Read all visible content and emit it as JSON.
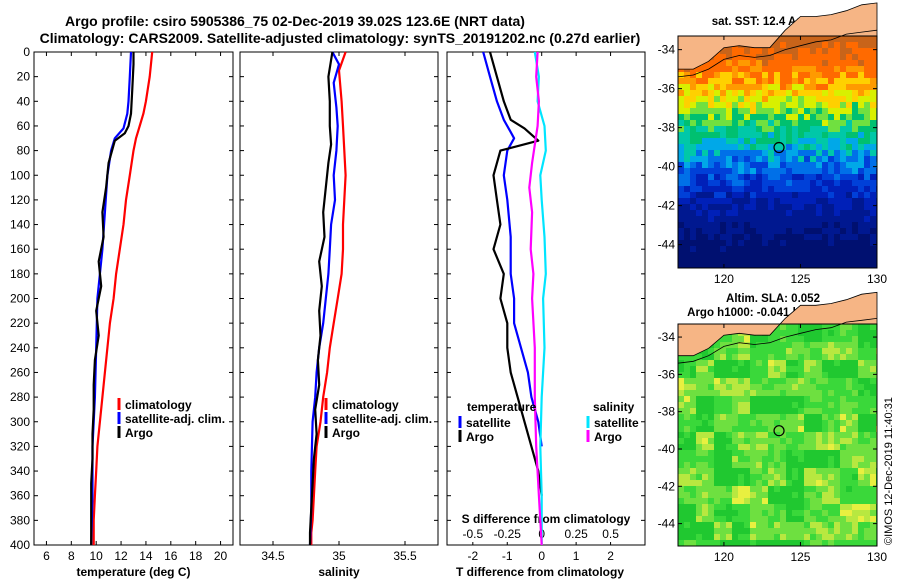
{
  "header": {
    "title_line1": "Argo profile: csiro 5905386_75 02-Dec-2019 39.02S 123.6E (NRT data)",
    "title_line2": "Climatology: CARS2009. Satellite-adjusted climatology: synTS_20191202.nc (0.27d earlier)"
  },
  "colors": {
    "climatology": "#ff0000",
    "satellite": "#0000ff",
    "argo": "#000000",
    "satellite_s": "#00e5ff",
    "argo_s": "#ff00ff",
    "land": "#f6b585"
  },
  "chart_data": [
    {
      "id": "temperature",
      "type": "line",
      "xlabel": "temperature (deg C)",
      "ylabel": "depth",
      "xlim": [
        5,
        21
      ],
      "ylim": [
        400,
        0
      ],
      "xticks": [
        "6",
        "8",
        "10",
        "12",
        "14",
        "16",
        "18",
        "20"
      ],
      "xtick_values": [
        6,
        8,
        10,
        12,
        14,
        16,
        18,
        20
      ],
      "yticks": [
        "0",
        "20",
        "40",
        "60",
        "80",
        "100",
        "120",
        "140",
        "160",
        "180",
        "200",
        "220",
        "240",
        "260",
        "280",
        "300",
        "320",
        "340",
        "360",
        "380",
        "400"
      ],
      "ytick_values": [
        0,
        20,
        40,
        60,
        80,
        100,
        120,
        140,
        160,
        180,
        200,
        220,
        240,
        260,
        280,
        300,
        320,
        340,
        360,
        380,
        400
      ],
      "legend": [
        "climatology",
        "satellite-adj. clim.",
        "Argo"
      ],
      "series": [
        {
          "name": "climatology",
          "x": [
            14.5,
            14.3,
            14.0,
            13.8,
            13.5,
            13.2,
            13.0,
            12.7,
            12.4,
            12.2,
            11.9,
            11.6,
            11.4,
            11.1,
            10.9,
            10.7,
            10.5,
            10.3,
            10.1,
            10.0,
            9.9,
            9.8,
            9.8
          ],
          "y": [
            0,
            20,
            40,
            50,
            60,
            70,
            80,
            100,
            120,
            140,
            160,
            180,
            200,
            220,
            240,
            260,
            280,
            300,
            320,
            340,
            360,
            380,
            400
          ]
        },
        {
          "name": "satellite-adj. clim.",
          "x": [
            12.8,
            12.7,
            12.6,
            12.5,
            12.2,
            11.5,
            11.2,
            10.9,
            10.7,
            10.5,
            10.3,
            10.1,
            10.0,
            9.9,
            9.8,
            9.7,
            9.7,
            9.6
          ],
          "y": [
            0,
            20,
            40,
            50,
            62,
            70,
            80,
            100,
            130,
            160,
            180,
            200,
            240,
            280,
            300,
            320,
            360,
            400
          ]
        },
        {
          "name": "Argo",
          "x": [
            13.0,
            13.0,
            12.9,
            12.8,
            12.6,
            12.3,
            11.5,
            11.0,
            10.8,
            10.5,
            10.6,
            10.2,
            10.4,
            10.0,
            10.2,
            9.9,
            9.8,
            9.8,
            9.7,
            9.7,
            9.6,
            9.6,
            9.6
          ],
          "y": [
            0,
            10,
            30,
            50,
            60,
            66,
            72,
            90,
            110,
            130,
            150,
            170,
            190,
            210,
            230,
            250,
            270,
            290,
            310,
            330,
            350,
            380,
            400
          ]
        }
      ]
    },
    {
      "id": "salinity",
      "type": "line",
      "xlabel": "salinity",
      "xlim": [
        34.25,
        35.75
      ],
      "ylim": [
        400,
        0
      ],
      "xticks": [
        "34.5",
        "35",
        "35.5"
      ],
      "xtick_values": [
        34.5,
        35.0,
        35.5
      ],
      "legend": [
        "climatology",
        "satellite-adj. clim.",
        "Argo"
      ],
      "series": [
        {
          "name": "climatology",
          "x": [
            35.05,
            35.0,
            35.02,
            35.03,
            35.04,
            35.05,
            35.04,
            35.03,
            35.03,
            35.02,
            34.99,
            34.96,
            34.93,
            34.91,
            34.88,
            34.86,
            34.83,
            34.82,
            34.81,
            34.8,
            34.79,
            34.79
          ],
          "y": [
            0,
            15,
            40,
            60,
            80,
            100,
            120,
            140,
            160,
            180,
            200,
            220,
            240,
            260,
            280,
            300,
            320,
            340,
            360,
            380,
            390,
            400
          ]
        },
        {
          "name": "satellite-adj. clim.",
          "x": [
            34.95,
            35.0,
            34.96,
            34.98,
            34.99,
            34.98,
            34.96,
            34.97,
            34.94,
            34.93,
            34.92,
            34.9,
            34.88,
            34.85,
            34.83,
            34.82,
            34.8,
            34.79,
            34.79,
            34.78
          ],
          "y": [
            0,
            10,
            25,
            45,
            60,
            80,
            100,
            120,
            140,
            160,
            180,
            200,
            220,
            240,
            260,
            280,
            300,
            340,
            370,
            400
          ]
        },
        {
          "name": "Argo",
          "x": [
            34.95,
            34.92,
            34.93,
            34.93,
            34.94,
            34.92,
            34.9,
            34.88,
            34.89,
            34.85,
            34.87,
            34.85,
            34.86,
            34.84,
            34.85,
            34.82,
            34.83,
            34.81,
            34.8,
            34.79,
            34.78,
            34.78
          ],
          "y": [
            0,
            20,
            40,
            60,
            75,
            90,
            110,
            130,
            150,
            170,
            190,
            210,
            230,
            250,
            270,
            290,
            310,
            330,
            350,
            370,
            390,
            400
          ]
        }
      ]
    },
    {
      "id": "difference",
      "type": "line",
      "xlabel": "T difference from climatology",
      "x2label": "S difference from climatology",
      "xlim": [
        -2.75,
        3.0
      ],
      "ylim": [
        400,
        0
      ],
      "x2lim": [
        -0.6875,
        0.75
      ],
      "xticks": [
        "-2",
        "-1",
        "0",
        "1",
        "2"
      ],
      "xtick_values": [
        -2,
        -1,
        0,
        1,
        2
      ],
      "x2ticks": [
        "-0.5",
        "-0.25",
        "0",
        "0.25",
        "0.5"
      ],
      "x2tick_values": [
        -0.5,
        -0.25,
        0,
        0.25,
        0.5
      ],
      "legend_t_title": "temperature",
      "legend_s_title": "salinity",
      "legend": [
        "satellite",
        "Argo",
        "satellite",
        "Argo"
      ],
      "series": [
        {
          "name": "T satellite",
          "axis": "T",
          "x": [
            -1.7,
            -1.5,
            -1.3,
            -1.1,
            -0.9,
            -0.8,
            -1.0,
            -1.1,
            -1.0,
            -0.9,
            -0.9,
            -0.8,
            -0.8,
            -0.6,
            -0.4,
            -0.3,
            -0.1,
            0.0
          ],
          "y": [
            0,
            20,
            40,
            55,
            65,
            70,
            80,
            100,
            120,
            150,
            180,
            200,
            220,
            240,
            260,
            280,
            300,
            320
          ]
        },
        {
          "name": "T Argo",
          "axis": "T",
          "x": [
            -1.5,
            -1.3,
            -1.1,
            -0.9,
            -0.5,
            -0.1,
            -1.2,
            -1.4,
            -1.3,
            -1.2,
            -1.4,
            -1.1,
            -1.2,
            -1.0,
            -1.0,
            -0.9,
            -0.7,
            -0.5,
            -0.3,
            -0.1,
            0.0
          ],
          "y": [
            0,
            20,
            40,
            55,
            62,
            72,
            80,
            100,
            120,
            140,
            160,
            180,
            200,
            220,
            240,
            260,
            280,
            300,
            320,
            340,
            360
          ]
        },
        {
          "name": "S satellite",
          "axis": "S",
          "x": [
            -0.05,
            -0.02,
            -0.03,
            0.02,
            0.03,
            -0.01,
            0.0,
            0.02,
            0.03,
            0.01,
            0.02,
            0.0,
            -0.01,
            0.0,
            0.0
          ],
          "y": [
            0,
            20,
            40,
            60,
            80,
            100,
            120,
            150,
            180,
            200,
            240,
            280,
            320,
            360,
            400
          ]
        },
        {
          "name": "S Argo",
          "axis": "S",
          "x": [
            -0.03,
            -0.04,
            -0.02,
            -0.03,
            -0.07,
            -0.09,
            -0.07,
            -0.08,
            -0.06,
            -0.07,
            -0.05,
            -0.05,
            -0.04,
            -0.02,
            0.0
          ],
          "y": [
            0,
            20,
            40,
            60,
            90,
            110,
            130,
            160,
            180,
            200,
            240,
            280,
            320,
            360,
            400
          ]
        }
      ]
    }
  ],
  "maps": {
    "sst": {
      "title_line1": "sat. SST: 12.4 Argo: 13.1",
      "lat_ticks": [
        "-34",
        "-36",
        "-38",
        "-40",
        "-42",
        "-44"
      ],
      "lon_ticks": [
        "120",
        "125",
        "130"
      ],
      "lat_range": [
        -45.2,
        -33.3
      ],
      "lon_range": [
        117,
        130
      ],
      "float_lon": 123.6,
      "float_lat": -39.02
    },
    "sla": {
      "title_line1": "Altim. SLA: 0.052",
      "title_line2": "Argo h1000: -0.041 h2000: -0.048",
      "lat_ticks": [
        "-34",
        "-36",
        "-38",
        "-40",
        "-42",
        "-44"
      ],
      "lon_ticks": [
        "120",
        "125",
        "130"
      ],
      "lat_range": [
        -45.2,
        -33.3
      ],
      "lon_range": [
        117,
        130
      ],
      "float_lon": 123.6,
      "float_lat": -39.02
    }
  },
  "watermark": "©IMOS 12-Dec-2019 11:40:31"
}
